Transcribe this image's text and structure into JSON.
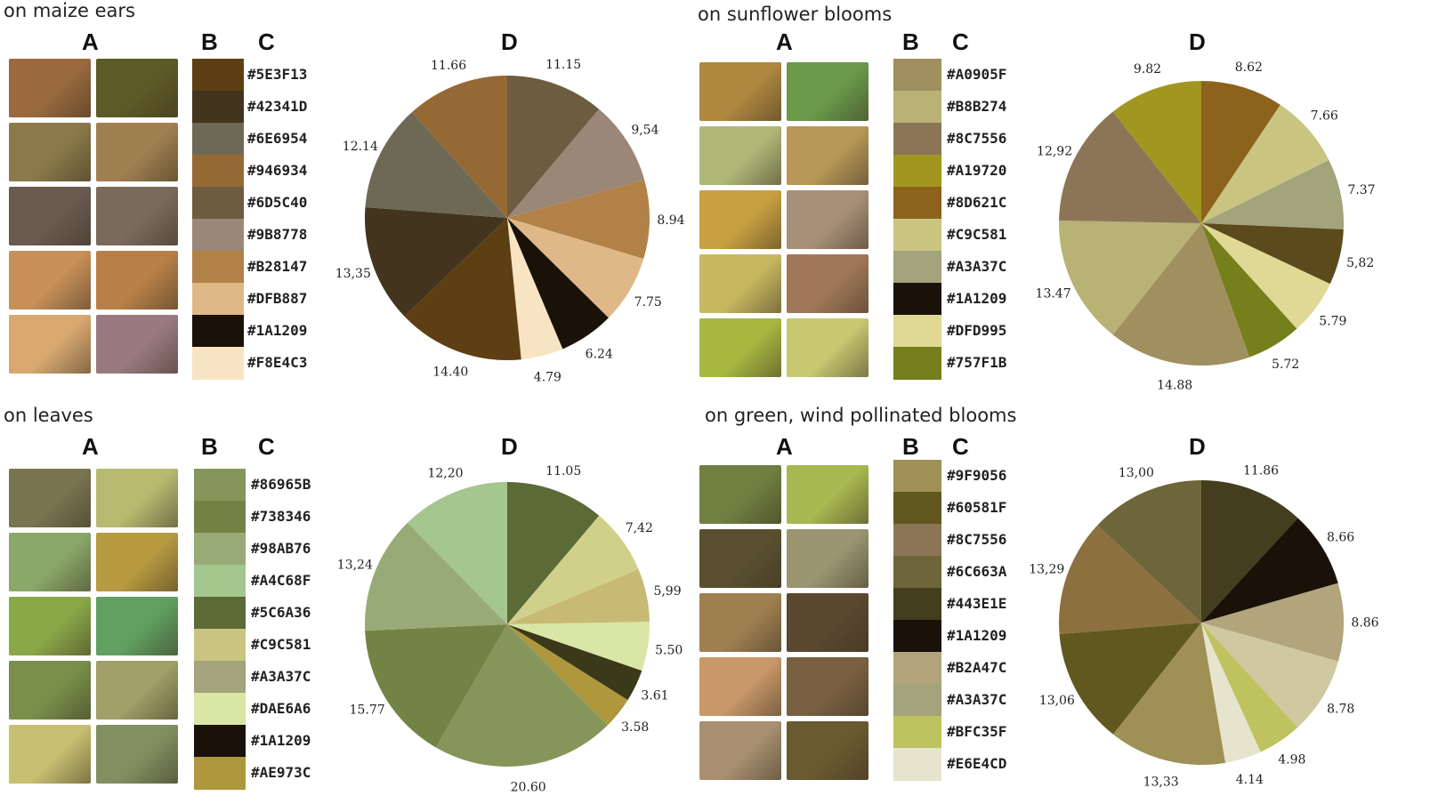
{
  "headers": {
    "a": "A",
    "b": "B",
    "c": "C",
    "d": "D"
  },
  "panels": [
    {
      "title": "on maize ears",
      "thumb_colors": [
        "#9a6a3e",
        "#5e5a26",
        "#8a7a4a",
        "#a08050",
        "#6a5a50",
        "#7a6a5a",
        "#c89058",
        "#b88048",
        "#d8a870",
        "#9a7a80"
      ],
      "codes": [
        "#5E3F13",
        "#42341D",
        "#6E6954",
        "#946934",
        "#6D5C40",
        "#9B8778",
        "#B28147",
        "#DFB887",
        "#1A1209",
        "#F8E4C3"
      ],
      "code_labels": [
        "#5E3F13",
        "#42341D",
        "#6E6954",
        "#946934",
        "#6D5C40",
        "#9B8778",
        "#B28147",
        "#DFB887",
        "#1A1209",
        "#F8E4C3"
      ]
    },
    {
      "title": "on sunflower blooms",
      "thumb_colors": [
        "#b08840",
        "#6a9a4a",
        "#b0b878",
        "#b89858",
        "#c8a040",
        "#a89078",
        "#c8b860",
        "#a07858",
        "#a8b840",
        "#c8c870"
      ],
      "codes": [
        "#A0905F",
        "#B8B274",
        "#8C7556",
        "#A19720",
        "#8D621C",
        "#C9C581",
        "#A3A37C",
        "#1A1209",
        "#DFD995",
        "#757F1B"
      ],
      "code_labels": [
        "#A0905F",
        "#B8B274",
        "#8C7556",
        "#A19720",
        "#8D621C",
        "#C9C581",
        "#A3A37C",
        "#1A1209",
        "#DFD995",
        "#757F1B"
      ]
    },
    {
      "title": "on leaves",
      "thumb_colors": [
        "#7a7450",
        "#b8b870",
        "#8aa868",
        "#b89a40",
        "#8aa848",
        "#60a060",
        "#78904a",
        "#a0a068",
        "#c8c070",
        "#809060"
      ],
      "codes": [
        "#86965B",
        "#738346",
        "#98AB76",
        "#A4C68F",
        "#5C6A36",
        "#C9C581",
        "#A3A37C",
        "#DAE6A6",
        "#1A1209",
        "#AE973C"
      ],
      "code_labels": [
        "#86965B",
        "#738346",
        "#98AB76",
        "#A4C68F",
        "#5C6A36",
        "#C9C581",
        "#A3A37C",
        "#DAE6A6",
        "#1A1209",
        "#AE973C"
      ]
    },
    {
      "title": "on green, wind pollinated blooms",
      "thumb_colors": [
        "#708040",
        "#a8b850",
        "#5a5030",
        "#9a9470",
        "#a08050",
        "#5a4830",
        "#c89868",
        "#7a6040",
        "#a89070",
        "#6a5a30"
      ],
      "codes": [
        "#9F9056",
        "#60581F",
        "#8C7556",
        "#6C663A",
        "#443E1E",
        "#1A1209",
        "#B2A47C",
        "#A3A37C",
        "#BFC35F",
        "#E6E4CD"
      ],
      "code_labels": [
        "#9F9056",
        "#60581F",
        "#8C7556",
        "#6C663A",
        "#443E1E",
        "#1A1209",
        "#B2A47C",
        "#A3A37C",
        "#BFC35F",
        "#E6E4CD"
      ]
    }
  ],
  "chart_data": [
    {
      "type": "pie",
      "title": "",
      "categories": [
        "#5E3F13",
        "#42341D",
        "#6E6954",
        "#946934",
        "#6D5C40",
        "#9B8778",
        "#B28147",
        "#DFB887",
        "#1A1209",
        "#F8E4C3"
      ],
      "slices": [
        {
          "color": "#6D5C40",
          "value": 11.15,
          "label": "11.15"
        },
        {
          "color": "#9B8778",
          "value": 9.54,
          "label": "9,54"
        },
        {
          "color": "#B28147",
          "value": 8.94,
          "label": "8.94"
        },
        {
          "color": "#DFB887",
          "value": 7.75,
          "label": "7.75"
        },
        {
          "color": "#1A1209",
          "value": 6.24,
          "label": "6.24"
        },
        {
          "color": "#F8E4C3",
          "value": 4.79,
          "label": "4.79"
        },
        {
          "color": "#5E3F13",
          "value": 14.4,
          "label": "14.40"
        },
        {
          "color": "#42341D",
          "value": 13.35,
          "label": "13,35"
        },
        {
          "color": "#6E6954",
          "value": 12.14,
          "label": "12.14"
        },
        {
          "color": "#946934",
          "value": 11.66,
          "label": "11.66"
        }
      ]
    },
    {
      "type": "pie",
      "title": "",
      "categories": [
        "#A0905F",
        "#B8B274",
        "#8C7556",
        "#A19720",
        "#8D621C",
        "#C9C581",
        "#A3A37C",
        "#1A1209",
        "#DFD995",
        "#757F1B"
      ],
      "slices": [
        {
          "color": "#8D621C",
          "value": 8.62,
          "label": "8.62"
        },
        {
          "color": "#C9C581",
          "value": 7.66,
          "label": "7.66"
        },
        {
          "color": "#A3A37C",
          "value": 7.37,
          "label": "7.37"
        },
        {
          "color": "#5C4A1C",
          "value": 5.82,
          "label": "5,82"
        },
        {
          "color": "#DFD995",
          "value": 5.79,
          "label": "5.79"
        },
        {
          "color": "#757F1B",
          "value": 5.72,
          "label": "5.72"
        },
        {
          "color": "#A0905F",
          "value": 14.88,
          "label": "14.88"
        },
        {
          "color": "#B8B274",
          "value": 13.47,
          "label": "13.47"
        },
        {
          "color": "#8C7556",
          "value": 12.92,
          "label": "12,92"
        },
        {
          "color": "#A19720",
          "value": 9.82,
          "label": "9.82"
        }
      ]
    },
    {
      "type": "pie",
      "title": "",
      "categories": [
        "#86965B",
        "#738346",
        "#98AB76",
        "#A4C68F",
        "#5C6A36",
        "#C9C581",
        "#A3A37C",
        "#DAE6A6",
        "#1A1209",
        "#AE973C"
      ],
      "slices": [
        {
          "color": "#5C6A36",
          "value": 11.05,
          "label": "11.05"
        },
        {
          "color": "#D0D08A",
          "value": 7.42,
          "label": "7,42"
        },
        {
          "color": "#C8BA74",
          "value": 5.99,
          "label": "5,99"
        },
        {
          "color": "#DAE6A6",
          "value": 5.5,
          "label": "5.50"
        },
        {
          "color": "#3A3A1A",
          "value": 3.61,
          "label": "3.61"
        },
        {
          "color": "#AE973C",
          "value": 3.58,
          "label": "3.58"
        },
        {
          "color": "#86965B",
          "value": 20.6,
          "label": "20.60"
        },
        {
          "color": "#738346",
          "value": 15.77,
          "label": "15.77"
        },
        {
          "color": "#98AB76",
          "value": 13.24,
          "label": "13,24"
        },
        {
          "color": "#A4C68F",
          "value": 12.2,
          "label": "12,20"
        }
      ]
    },
    {
      "type": "pie",
      "title": "",
      "categories": [
        "#9F9056",
        "#60581F",
        "#8C7556",
        "#6C663A",
        "#443E1E",
        "#1A1209",
        "#B2A47C",
        "#A3A37C",
        "#BFC35F",
        "#E6E4CD"
      ],
      "slices": [
        {
          "color": "#443E1E",
          "value": 11.86,
          "label": "11.86"
        },
        {
          "color": "#1A1209",
          "value": 8.66,
          "label": "8.66"
        },
        {
          "color": "#B2A47C",
          "value": 8.86,
          "label": "8.86"
        },
        {
          "color": "#CFC8A0",
          "value": 8.78,
          "label": "8.78"
        },
        {
          "color": "#BFC35F",
          "value": 4.98,
          "label": "4.98"
        },
        {
          "color": "#E6E4CD",
          "value": 4.14,
          "label": "4.14"
        },
        {
          "color": "#9F9056",
          "value": 13.33,
          "label": "13,33"
        },
        {
          "color": "#60581F",
          "value": 13.06,
          "label": "13,06"
        },
        {
          "color": "#8C7040",
          "value": 13.29,
          "label": "13,29"
        },
        {
          "color": "#6C663A",
          "value": 13.0,
          "label": "13,00"
        }
      ]
    }
  ]
}
